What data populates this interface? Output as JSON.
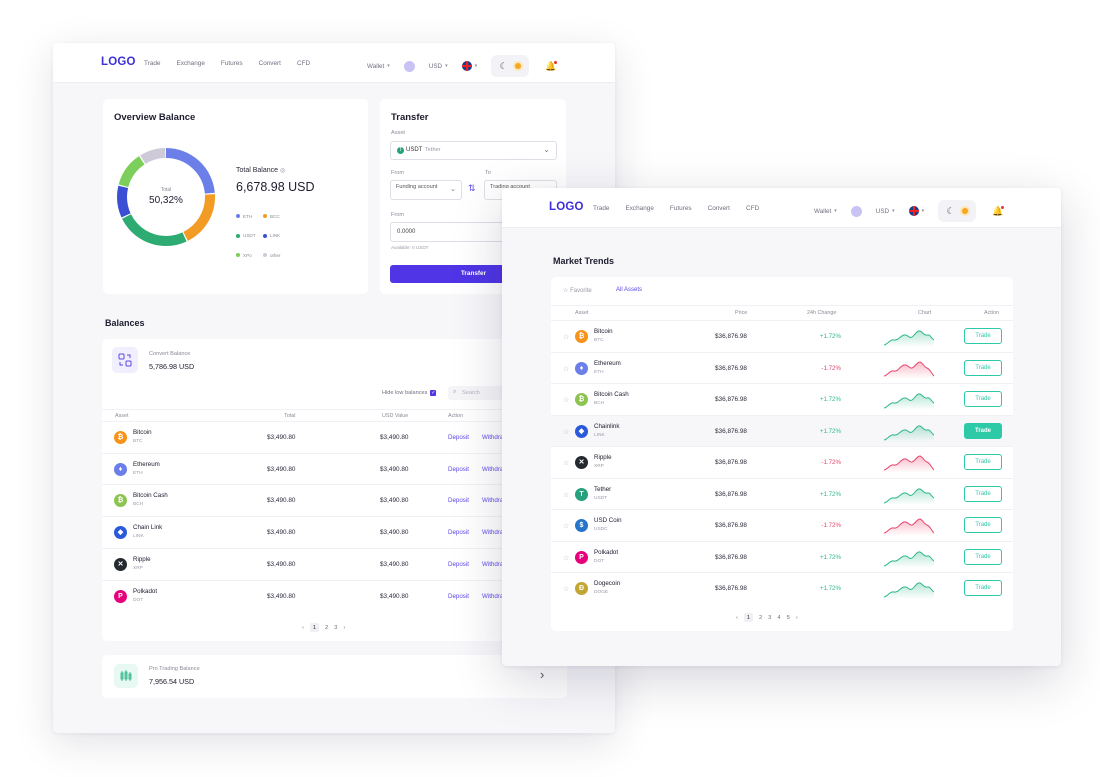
{
  "nav": {
    "logo": "LOGO",
    "links": [
      "Trade",
      "Exchange",
      "Futures",
      "Convert",
      "CFD"
    ],
    "wallet": "Wallet",
    "currency": "USD"
  },
  "overview": {
    "title": "Overview Balance",
    "donut_center_label": "Total",
    "donut_center_value": "50,32%",
    "total_label": "Total Balance",
    "total_value": "6,678.98 USD",
    "legend": [
      {
        "label": "ETH",
        "color": "#6c7ee8"
      },
      {
        "label": "BCC",
        "color": "#f29b25"
      },
      {
        "label": "USDT",
        "color": "#2eaa73"
      },
      {
        "label": "LINK",
        "color": "#3a4fd4"
      },
      {
        "label": "XPo",
        "color": "#7ccf5b"
      },
      {
        "label": "other",
        "color": "#cfcad8"
      }
    ],
    "segments": [
      {
        "label": "ETH",
        "percent": 24,
        "color": "#6c7ee8"
      },
      {
        "label": "BCC",
        "percent": 19,
        "color": "#f29b25"
      },
      {
        "label": "USDT",
        "percent": 25,
        "color": "#2eaa73"
      },
      {
        "label": "LINK",
        "percent": 11,
        "color": "#3a4fd4"
      },
      {
        "label": "XPo",
        "percent": 12,
        "color": "#7ccf5b"
      },
      {
        "label": "other",
        "percent": 9,
        "color": "#cfcad8"
      }
    ]
  },
  "transfer": {
    "title": "Transfer",
    "asset_label": "Asset",
    "asset_value": "USDT",
    "asset_sub": "Tether",
    "from_label": "From",
    "from_value": "Funding account",
    "to_label": "To",
    "to_value": "Trading account",
    "amount_label": "From",
    "amount_value": "0.0000",
    "available": "Available: 0 USDT",
    "button": "Transfer"
  },
  "balances": {
    "title": "Balances",
    "convert_label": "Convert Balance",
    "convert_value": "5,786.98 USD",
    "hide_low": "Hide low balances",
    "search_placeholder": "Search",
    "headers": [
      "Asset",
      "Total",
      "USD Value",
      "Action"
    ],
    "deposit": "Deposit",
    "withdraw": "Withdraw",
    "rows": [
      {
        "name": "Bitcoin",
        "symbol": "BTC",
        "total": "$3,490.80",
        "usd": "$3,490.80",
        "color": "#f7931a",
        "glyph": "₿"
      },
      {
        "name": "Ethereum",
        "symbol": "ETH",
        "total": "$3,490.80",
        "usd": "$3,490.80",
        "color": "#6c7ee8",
        "glyph": "♦"
      },
      {
        "name": "Bitcoin Cash",
        "symbol": "BCH",
        "total": "$3,490.80",
        "usd": "$3,490.80",
        "color": "#8dc351",
        "glyph": "₿"
      },
      {
        "name": "Chain Link",
        "symbol": "LINK",
        "total": "$3,490.80",
        "usd": "$3,490.80",
        "color": "#2a5ada",
        "glyph": "◆"
      },
      {
        "name": "Ripple",
        "symbol": "XRP",
        "total": "$3,490.80",
        "usd": "$3,490.80",
        "color": "#23292f",
        "glyph": "✕"
      },
      {
        "name": "Polkadot",
        "symbol": "DOT",
        "total": "$3,490.80",
        "usd": "$3,490.80",
        "color": "#e6007a",
        "glyph": "P"
      }
    ],
    "pages": [
      "1",
      "2",
      "3"
    ],
    "pro_label": "Pro Trading Balance",
    "pro_value": "7,956.54 USD"
  },
  "market": {
    "title": "Market Trends",
    "tab_favorite": "Favorite",
    "tab_all": "All Assets",
    "headers": [
      "Asset",
      "Price",
      "24h Change",
      "Chart",
      "Action"
    ],
    "trade": "Trade",
    "positive_color": "#2eb88a",
    "negative_color": "#e8436a",
    "rows": [
      {
        "name": "Bitcoin",
        "symbol": "BTC",
        "price": "$36,876.98",
        "change": "+1.72%",
        "up": true,
        "color": "#f7931a",
        "glyph": "₿",
        "active": false
      },
      {
        "name": "Ethereum",
        "symbol": "ETH",
        "price": "$36,876.98",
        "change": "-1.72%",
        "up": false,
        "color": "#6c7ee8",
        "glyph": "♦",
        "active": false
      },
      {
        "name": "Bitcoin Cash",
        "symbol": "BCH",
        "price": "$36,876.98",
        "change": "+1.72%",
        "up": true,
        "color": "#8dc351",
        "glyph": "₿",
        "active": false
      },
      {
        "name": "Chainlink",
        "symbol": "LINK",
        "price": "$36,876.98",
        "change": "+1.72%",
        "up": true,
        "color": "#2a5ada",
        "glyph": "◆",
        "active": true
      },
      {
        "name": "Ripple",
        "symbol": "XRP",
        "price": "$36,876.98",
        "change": "-1.72%",
        "up": false,
        "color": "#23292f",
        "glyph": "✕",
        "active": false
      },
      {
        "name": "Tether",
        "symbol": "USDT",
        "price": "$36,876.98",
        "change": "+1.72%",
        "up": true,
        "color": "#26a17b",
        "glyph": "T",
        "active": false
      },
      {
        "name": "USD Coin",
        "symbol": "USDC",
        "price": "$36,876.98",
        "change": "-1.72%",
        "up": false,
        "color": "#2775ca",
        "glyph": "$",
        "active": false
      },
      {
        "name": "Polkadot",
        "symbol": "DOT",
        "price": "$36,876.98",
        "change": "+1.72%",
        "up": true,
        "color": "#e6007a",
        "glyph": "P",
        "active": false
      },
      {
        "name": "Dogecoin",
        "symbol": "DOGE",
        "price": "$36,876.98",
        "change": "+1.72%",
        "up": true,
        "color": "#c2a633",
        "glyph": "Ð",
        "active": false
      }
    ],
    "pages": [
      "1",
      "2",
      "3",
      "4",
      "5"
    ]
  }
}
